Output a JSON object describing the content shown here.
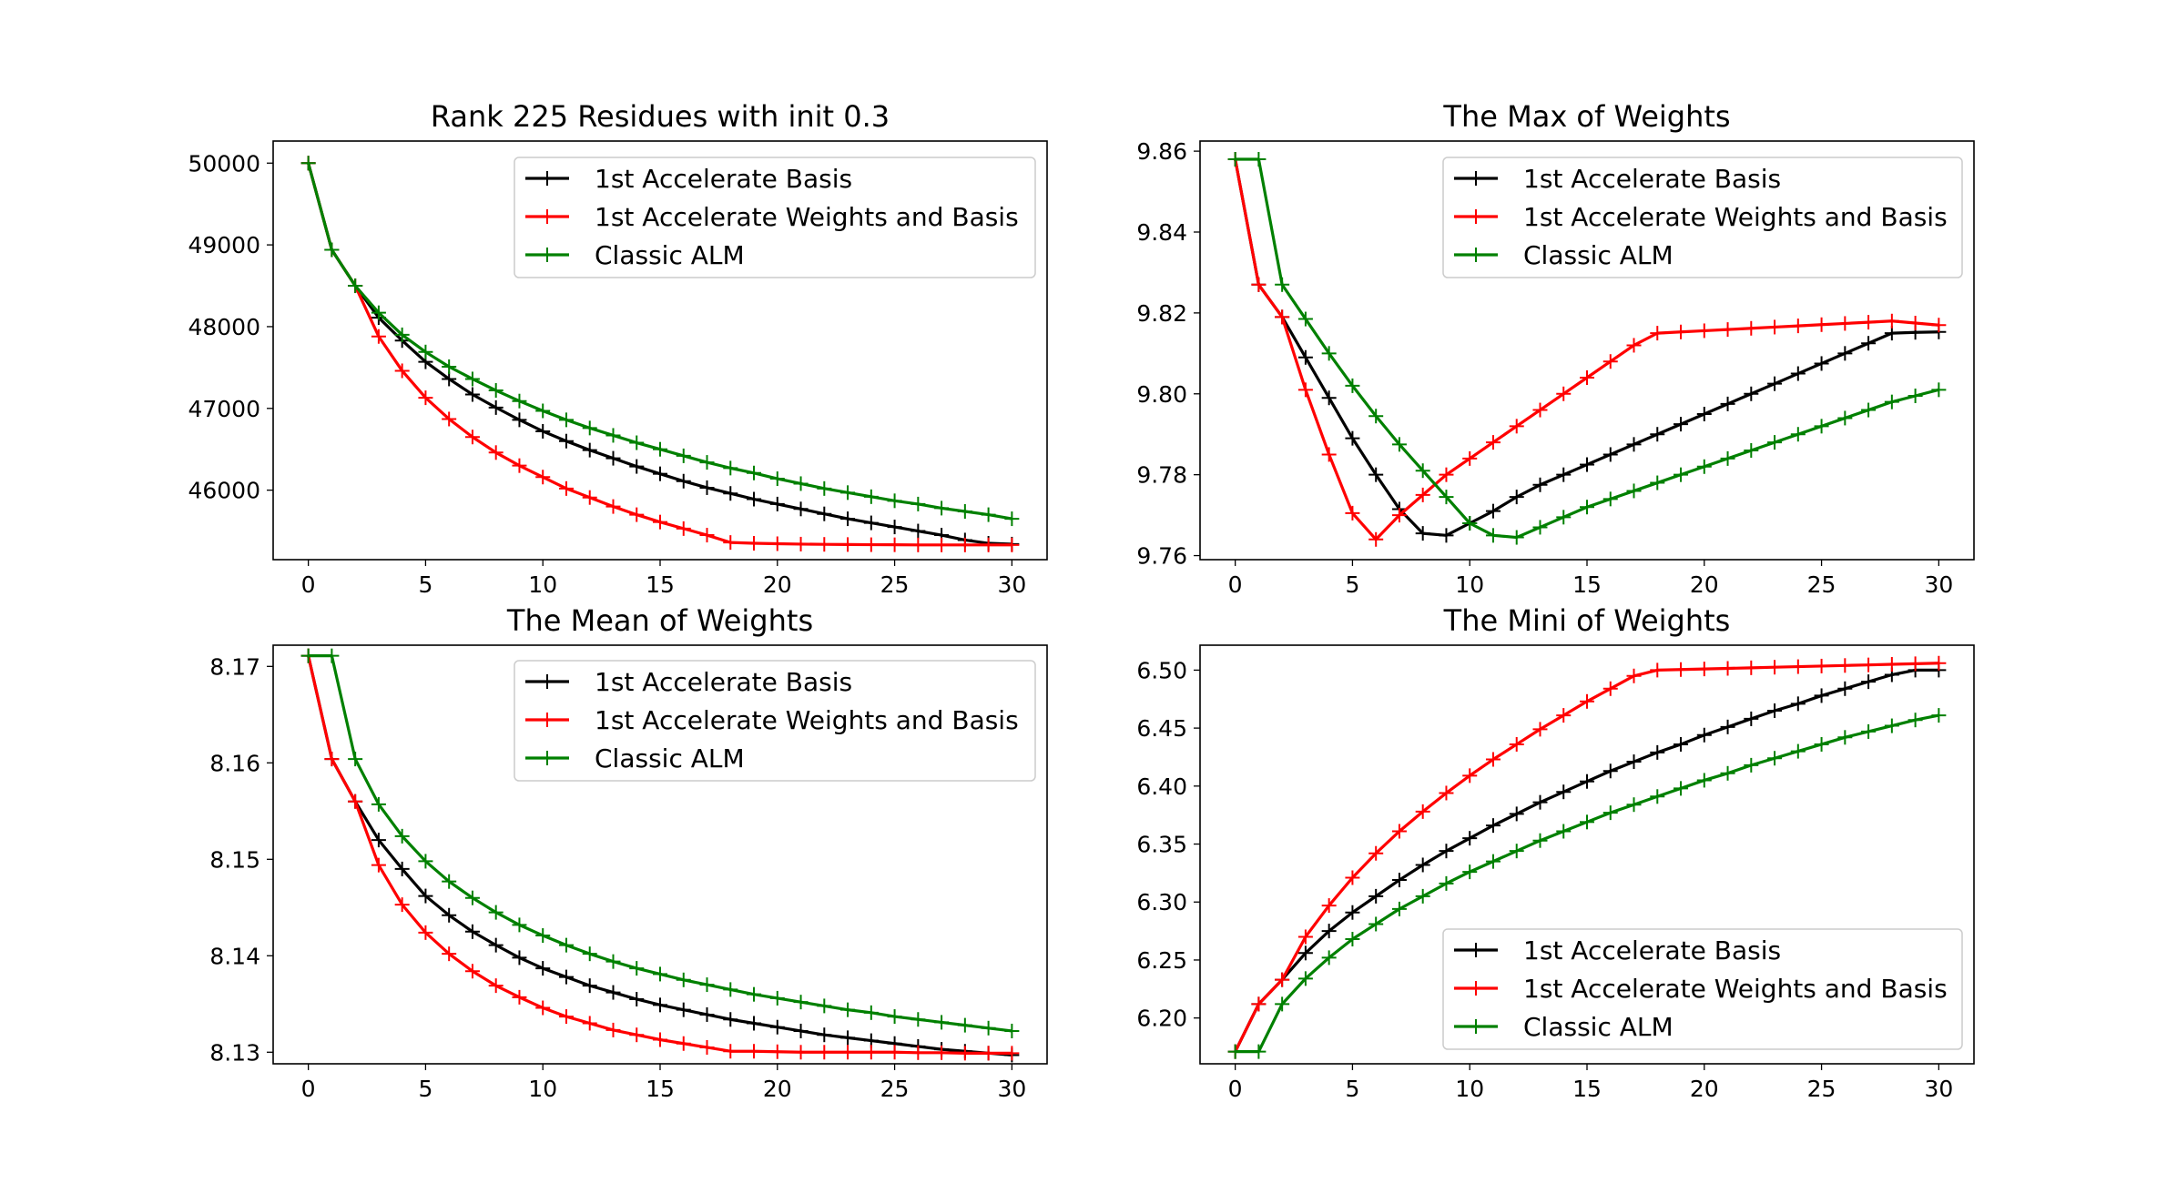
{
  "chart_data": [
    {
      "type": "line",
      "title": "Rank 225 Residues with init 0.3",
      "xlim": [
        -1.5,
        31.5
      ],
      "ylim": [
        45150,
        50270
      ],
      "xticks": [
        0,
        5,
        10,
        15,
        20,
        25,
        30
      ],
      "yticks": [
        46000,
        47000,
        48000,
        49000,
        50000
      ],
      "grid": false,
      "legend": "upper right",
      "x": [
        0,
        1,
        2,
        3,
        4,
        5,
        6,
        7,
        8,
        9,
        10,
        11,
        12,
        13,
        14,
        15,
        16,
        17,
        18,
        19,
        20,
        21,
        22,
        23,
        24,
        25,
        26,
        27,
        28,
        29,
        30
      ],
      "series": [
        {
          "name": "1st Accelerate Basis",
          "color": "#000000",
          "values": [
            50000,
            48940,
            48500,
            48110,
            47830,
            47570,
            47360,
            47170,
            47010,
            46860,
            46720,
            46600,
            46490,
            46390,
            46290,
            46200,
            46110,
            46030,
            45960,
            45890,
            45830,
            45770,
            45710,
            45650,
            45600,
            45550,
            45500,
            45450,
            45390,
            45350,
            45340
          ]
        },
        {
          "name": "1st Accelerate Weights and Basis",
          "color": "#ff0000",
          "values": [
            50000,
            48940,
            48500,
            47880,
            47460,
            47130,
            46870,
            46650,
            46460,
            46300,
            46160,
            46020,
            45910,
            45800,
            45700,
            45610,
            45530,
            45450,
            45360,
            45350,
            45345,
            45340,
            45337,
            45335,
            45333,
            45332,
            45330,
            45330,
            45330,
            45330,
            45330
          ]
        },
        {
          "name": "Classic ALM",
          "color": "#008000",
          "values": [
            50000,
            48940,
            48500,
            48170,
            47900,
            47690,
            47510,
            47360,
            47220,
            47090,
            46970,
            46860,
            46760,
            46670,
            46580,
            46500,
            46420,
            46340,
            46270,
            46210,
            46140,
            46080,
            46020,
            45970,
            45920,
            45870,
            45830,
            45780,
            45740,
            45700,
            45650
          ]
        }
      ]
    },
    {
      "type": "line",
      "title": "The Max of Weights",
      "xlim": [
        -1.5,
        31.5
      ],
      "ylim": [
        9.759,
        9.8625
      ],
      "xticks": [
        0,
        5,
        10,
        15,
        20,
        25,
        30
      ],
      "yticks": [
        9.76,
        9.78,
        9.8,
        9.82,
        9.84,
        9.86
      ],
      "ytick_labels": [
        "9.76",
        "9.78",
        "9.80",
        "9.82",
        "9.84",
        "9.86"
      ],
      "grid": false,
      "legend": "upper right",
      "x": [
        0,
        1,
        2,
        3,
        4,
        5,
        6,
        7,
        8,
        9,
        10,
        11,
        12,
        13,
        14,
        15,
        16,
        17,
        18,
        19,
        20,
        21,
        22,
        23,
        24,
        25,
        26,
        27,
        28,
        29,
        30
      ],
      "series": [
        {
          "name": "1st Accelerate Basis",
          "color": "#000000",
          "values": [
            9.858,
            9.827,
            9.819,
            9.809,
            9.799,
            9.789,
            9.78,
            9.7715,
            9.7655,
            9.765,
            9.768,
            9.771,
            9.7745,
            9.7775,
            9.78,
            9.7825,
            9.785,
            9.7875,
            9.79,
            9.7925,
            9.795,
            9.7975,
            9.8,
            9.8025,
            9.805,
            9.8075,
            9.81,
            9.8125,
            9.815,
            9.8152,
            9.8153
          ]
        },
        {
          "name": "1st Accelerate Weights and Basis",
          "color": "#ff0000",
          "values": [
            9.858,
            9.827,
            9.819,
            9.801,
            9.785,
            9.7705,
            9.764,
            9.77,
            9.775,
            9.78,
            9.784,
            9.788,
            9.792,
            9.796,
            9.8,
            9.804,
            9.808,
            9.812,
            9.815,
            9.8153,
            9.8156,
            9.8159,
            9.8162,
            9.8165,
            9.8168,
            9.8171,
            9.8174,
            9.8177,
            9.818,
            9.8175,
            9.817
          ]
        },
        {
          "name": "Classic ALM",
          "color": "#008000",
          "values": [
            9.858,
            9.858,
            9.827,
            9.8185,
            9.81,
            9.802,
            9.7945,
            9.7875,
            9.781,
            9.7745,
            9.768,
            9.765,
            9.7645,
            9.767,
            9.7695,
            9.772,
            9.774,
            9.776,
            9.778,
            9.78,
            9.782,
            9.784,
            9.786,
            9.788,
            9.79,
            9.792,
            9.794,
            9.796,
            9.798,
            9.7995,
            9.801
          ]
        }
      ]
    },
    {
      "type": "line",
      "title": "The Mean of Weights",
      "xlim": [
        -1.5,
        31.5
      ],
      "ylim": [
        8.1288,
        8.1722
      ],
      "xticks": [
        0,
        5,
        10,
        15,
        20,
        25,
        30
      ],
      "yticks": [
        8.13,
        8.14,
        8.15,
        8.16,
        8.17
      ],
      "ytick_labels": [
        "8.13",
        "8.14",
        "8.15",
        "8.16",
        "8.17"
      ],
      "grid": false,
      "legend": "upper right",
      "x": [
        0,
        1,
        2,
        3,
        4,
        5,
        6,
        7,
        8,
        9,
        10,
        11,
        12,
        13,
        14,
        15,
        16,
        17,
        18,
        19,
        20,
        21,
        22,
        23,
        24,
        25,
        26,
        27,
        28,
        29,
        30
      ],
      "series": [
        {
          "name": "1st Accelerate Basis",
          "color": "#000000",
          "values": [
            8.1711,
            8.1604,
            8.156,
            8.152,
            8.149,
            8.1462,
            8.1442,
            8.1425,
            8.1411,
            8.1398,
            8.1387,
            8.1378,
            8.1369,
            8.1362,
            8.1355,
            8.1349,
            8.1344,
            8.1339,
            8.1334,
            8.133,
            8.1326,
            8.1322,
            8.1318,
            8.1315,
            8.1312,
            8.1309,
            8.1306,
            8.1303,
            8.1301,
            8.1299,
            8.1297
          ]
        },
        {
          "name": "1st Accelerate Weights and Basis",
          "color": "#ff0000",
          "values": [
            8.1711,
            8.1604,
            8.156,
            8.1494,
            8.1453,
            8.1424,
            8.1402,
            8.1384,
            8.1369,
            8.1357,
            8.1346,
            8.1337,
            8.133,
            8.1323,
            8.1318,
            8.1313,
            8.1309,
            8.1305,
            8.1301,
            8.1301,
            8.13005,
            8.13,
            8.13,
            8.13,
            8.13,
            8.13,
            8.12995,
            8.12995,
            8.1299,
            8.1299,
            8.1299
          ]
        },
        {
          "name": "Classic ALM",
          "color": "#008000",
          "values": [
            8.1711,
            8.1711,
            8.1604,
            8.1557,
            8.1524,
            8.1498,
            8.1477,
            8.146,
            8.1445,
            8.1432,
            8.1421,
            8.1411,
            8.1402,
            8.1394,
            8.1387,
            8.1381,
            8.1375,
            8.137,
            8.1365,
            8.136,
            8.1356,
            8.1352,
            8.1348,
            8.1344,
            8.1341,
            8.1337,
            8.1334,
            8.1331,
            8.1328,
            8.1325,
            8.1322
          ]
        }
      ]
    },
    {
      "type": "line",
      "title": "The Mini of Weights",
      "xlim": [
        -1.5,
        31.5
      ],
      "ylim": [
        6.1605,
        6.5215
      ],
      "xticks": [
        0,
        5,
        10,
        15,
        20,
        25,
        30
      ],
      "yticks": [
        6.2,
        6.25,
        6.3,
        6.35,
        6.4,
        6.45,
        6.5
      ],
      "ytick_labels": [
        "6.20",
        "6.25",
        "6.30",
        "6.35",
        "6.40",
        "6.45",
        "6.50"
      ],
      "grid": false,
      "legend": "lower right",
      "x": [
        0,
        1,
        2,
        3,
        4,
        5,
        6,
        7,
        8,
        9,
        10,
        11,
        12,
        13,
        14,
        15,
        16,
        17,
        18,
        19,
        20,
        21,
        22,
        23,
        24,
        25,
        26,
        27,
        28,
        29,
        30
      ],
      "series": [
        {
          "name": "1st Accelerate Basis",
          "color": "#000000",
          "values": [
            6.171,
            6.212,
            6.233,
            6.256,
            6.275,
            6.291,
            6.305,
            6.319,
            6.332,
            6.344,
            6.355,
            6.366,
            6.376,
            6.386,
            6.395,
            6.404,
            6.413,
            6.421,
            6.429,
            6.436,
            6.444,
            6.451,
            6.458,
            6.465,
            6.471,
            6.478,
            6.484,
            6.49,
            6.496,
            6.5,
            6.5
          ]
        },
        {
          "name": "1st Accelerate Weights and Basis",
          "color": "#ff0000",
          "values": [
            6.171,
            6.212,
            6.233,
            6.27,
            6.297,
            6.321,
            6.342,
            6.361,
            6.378,
            6.394,
            6.409,
            6.423,
            6.436,
            6.449,
            6.461,
            6.473,
            6.484,
            6.495,
            6.5,
            6.5005,
            6.501,
            6.5015,
            6.502,
            6.5025,
            6.503,
            6.5035,
            6.504,
            6.5045,
            6.505,
            6.5055,
            6.506
          ]
        },
        {
          "name": "Classic ALM",
          "color": "#008000",
          "values": [
            6.171,
            6.171,
            6.212,
            6.234,
            6.252,
            6.268,
            6.281,
            6.294,
            6.305,
            6.316,
            6.326,
            6.335,
            6.344,
            6.353,
            6.361,
            6.369,
            6.377,
            6.384,
            6.391,
            6.398,
            6.405,
            6.411,
            6.418,
            6.424,
            6.43,
            6.436,
            6.442,
            6.447,
            6.452,
            6.457,
            6.461
          ]
        }
      ]
    }
  ]
}
